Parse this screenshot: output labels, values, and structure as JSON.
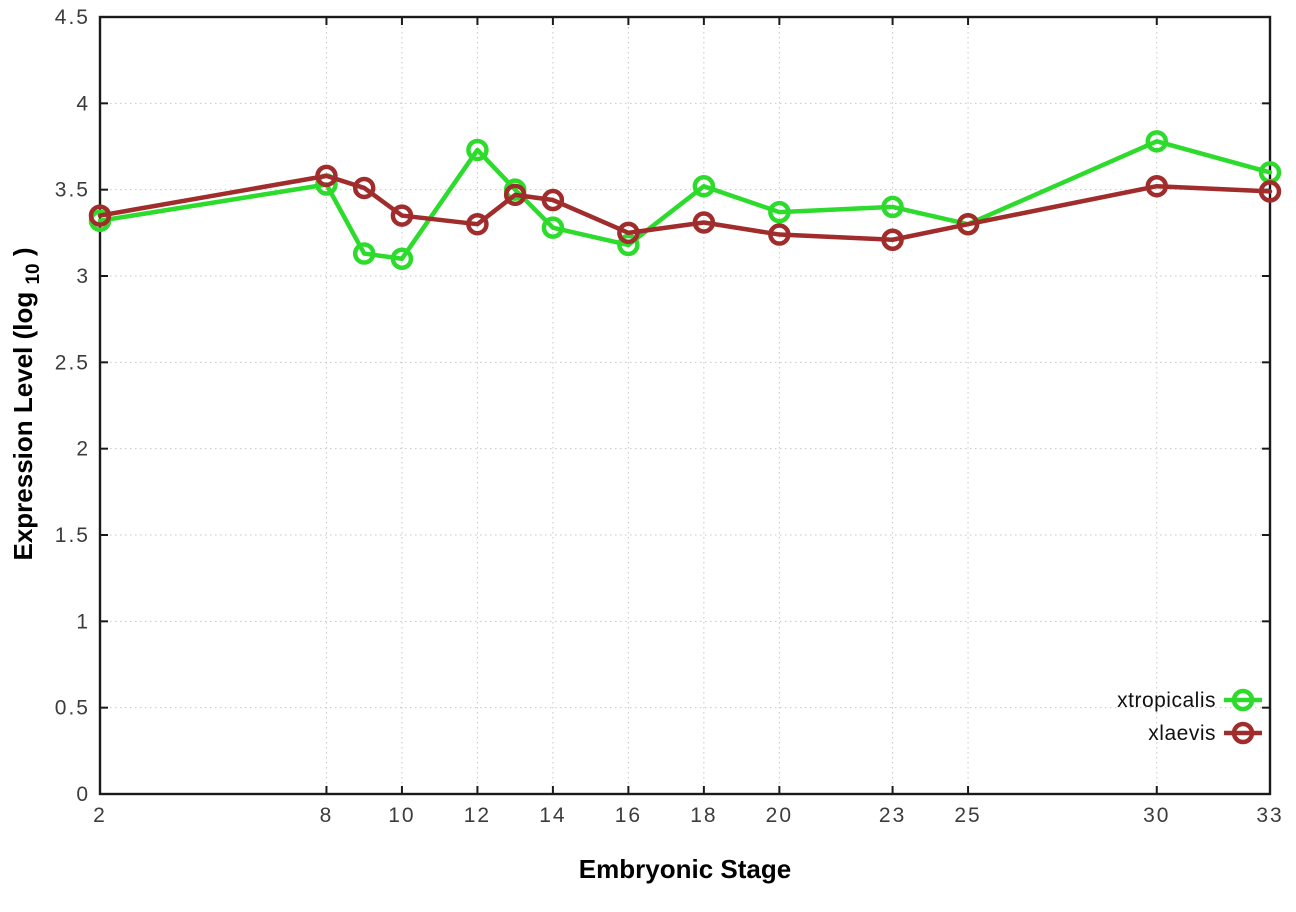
{
  "chart_data": {
    "type": "line",
    "title": "",
    "xlabel": "Embryonic Stage",
    "ylabel": "Expression Level (log10)",
    "ylabel_parts": {
      "main": "Expression Level (log",
      "sub": "10",
      "close": ")"
    },
    "x": [
      2,
      8,
      9,
      10,
      12,
      13,
      14,
      16,
      18,
      20,
      23,
      25,
      30,
      33
    ],
    "xticks": [
      2,
      8,
      10,
      12,
      14,
      16,
      18,
      20,
      23,
      25,
      30,
      33
    ],
    "yticks": [
      0,
      0.5,
      1,
      1.5,
      2,
      2.5,
      3,
      3.5,
      4,
      4.5
    ],
    "xlim": [
      2,
      33
    ],
    "ylim": [
      0,
      4.5
    ],
    "grid": true,
    "legend_position": "inside-bottom-right",
    "series": [
      {
        "name": "xtropicalis",
        "color": "#2cdb2c",
        "marker": "open-circle",
        "values": [
          3.32,
          3.53,
          3.13,
          3.1,
          3.73,
          3.5,
          3.28,
          3.18,
          3.52,
          3.37,
          3.4,
          3.3,
          3.78,
          3.6
        ]
      },
      {
        "name": "xlaevis",
        "color": "#a02c2c",
        "marker": "open-circle",
        "values": [
          3.35,
          3.58,
          3.51,
          3.35,
          3.3,
          3.47,
          3.44,
          3.25,
          3.31,
          3.24,
          3.21,
          3.3,
          3.52,
          3.49
        ]
      }
    ]
  }
}
